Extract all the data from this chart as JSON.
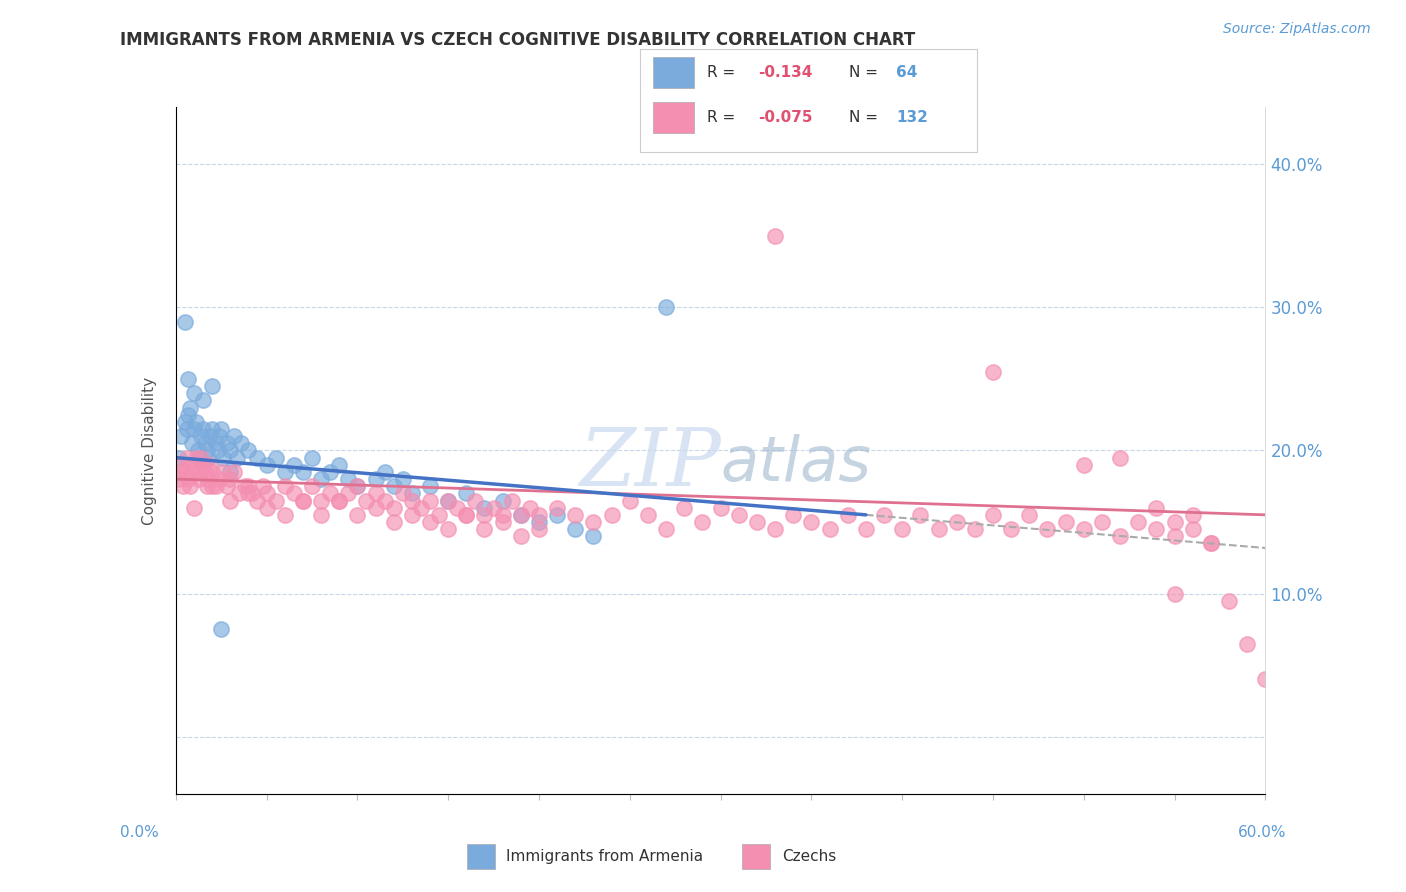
{
  "title": "IMMIGRANTS FROM ARMENIA VS CZECH COGNITIVE DISABILITY CORRELATION CHART",
  "source_text": "Source: ZipAtlas.com",
  "ylabel": "Cognitive Disability",
  "xlim": [
    0.0,
    0.6
  ],
  "ylim": [
    -0.04,
    0.44
  ],
  "ytick_vals": [
    0.0,
    0.1,
    0.2,
    0.3,
    0.4
  ],
  "ytick_labels": [
    "",
    "10.0%",
    "20.0%",
    "30.0%",
    "40.0%"
  ],
  "color_armenia": "#7aabdc",
  "color_czech": "#f48fb1",
  "color_armenia_line": "#4472c4",
  "color_czech_line": "#e07090",
  "watermark_color": "#c8d8ee",
  "legend_r1": "R = -0.134",
  "legend_n1": "N =  64",
  "legend_r2": "R = -0.075",
  "legend_n2": "N = 132",
  "armenia_x": [
    0.002,
    0.003,
    0.005,
    0.006,
    0.007,
    0.008,
    0.009,
    0.01,
    0.011,
    0.012,
    0.013,
    0.014,
    0.015,
    0.016,
    0.017,
    0.018,
    0.019,
    0.02,
    0.022,
    0.023,
    0.024,
    0.025,
    0.026,
    0.028,
    0.03,
    0.032,
    0.034,
    0.036,
    0.04,
    0.045,
    0.05,
    0.055,
    0.06,
    0.065,
    0.07,
    0.075,
    0.08,
    0.085,
    0.09,
    0.095,
    0.1,
    0.11,
    0.115,
    0.12,
    0.125,
    0.13,
    0.14,
    0.15,
    0.16,
    0.17,
    0.18,
    0.19,
    0.2,
    0.21,
    0.22,
    0.23,
    0.005,
    0.007,
    0.01,
    0.015,
    0.02,
    0.025,
    0.03,
    0.27
  ],
  "armenia_y": [
    0.195,
    0.21,
    0.22,
    0.215,
    0.225,
    0.23,
    0.205,
    0.215,
    0.22,
    0.2,
    0.195,
    0.21,
    0.215,
    0.205,
    0.2,
    0.195,
    0.21,
    0.215,
    0.205,
    0.2,
    0.21,
    0.215,
    0.195,
    0.205,
    0.2,
    0.21,
    0.195,
    0.205,
    0.2,
    0.195,
    0.19,
    0.195,
    0.185,
    0.19,
    0.185,
    0.195,
    0.18,
    0.185,
    0.19,
    0.18,
    0.175,
    0.18,
    0.185,
    0.175,
    0.18,
    0.17,
    0.175,
    0.165,
    0.17,
    0.16,
    0.165,
    0.155,
    0.15,
    0.155,
    0.145,
    0.14,
    0.29,
    0.25,
    0.24,
    0.235,
    0.245,
    0.075,
    0.185,
    0.3
  ],
  "czech_x": [
    0.001,
    0.002,
    0.003,
    0.004,
    0.005,
    0.006,
    0.007,
    0.008,
    0.009,
    0.01,
    0.011,
    0.012,
    0.013,
    0.014,
    0.015,
    0.016,
    0.017,
    0.018,
    0.019,
    0.02,
    0.022,
    0.024,
    0.026,
    0.028,
    0.03,
    0.032,
    0.035,
    0.038,
    0.04,
    0.042,
    0.045,
    0.048,
    0.05,
    0.055,
    0.06,
    0.065,
    0.07,
    0.075,
    0.08,
    0.085,
    0.09,
    0.095,
    0.1,
    0.105,
    0.11,
    0.115,
    0.12,
    0.125,
    0.13,
    0.135,
    0.14,
    0.145,
    0.15,
    0.155,
    0.16,
    0.165,
    0.17,
    0.175,
    0.18,
    0.185,
    0.19,
    0.195,
    0.2,
    0.21,
    0.22,
    0.23,
    0.24,
    0.25,
    0.26,
    0.27,
    0.28,
    0.29,
    0.3,
    0.31,
    0.32,
    0.33,
    0.34,
    0.35,
    0.36,
    0.37,
    0.38,
    0.39,
    0.4,
    0.41,
    0.42,
    0.43,
    0.44,
    0.45,
    0.46,
    0.47,
    0.48,
    0.49,
    0.5,
    0.51,
    0.52,
    0.53,
    0.54,
    0.55,
    0.56,
    0.57,
    0.01,
    0.02,
    0.03,
    0.04,
    0.05,
    0.06,
    0.07,
    0.08,
    0.09,
    0.1,
    0.11,
    0.12,
    0.13,
    0.14,
    0.15,
    0.16,
    0.17,
    0.18,
    0.19,
    0.2,
    0.33,
    0.45,
    0.5,
    0.52,
    0.54,
    0.55,
    0.56,
    0.57,
    0.58,
    0.59,
    0.6,
    0.55
  ],
  "czech_y": [
    0.185,
    0.18,
    0.19,
    0.175,
    0.185,
    0.195,
    0.18,
    0.175,
    0.185,
    0.19,
    0.195,
    0.185,
    0.18,
    0.195,
    0.19,
    0.185,
    0.175,
    0.18,
    0.19,
    0.185,
    0.175,
    0.18,
    0.185,
    0.175,
    0.18,
    0.185,
    0.17,
    0.175,
    0.175,
    0.17,
    0.165,
    0.175,
    0.17,
    0.165,
    0.175,
    0.17,
    0.165,
    0.175,
    0.165,
    0.17,
    0.165,
    0.17,
    0.175,
    0.165,
    0.17,
    0.165,
    0.16,
    0.17,
    0.165,
    0.16,
    0.165,
    0.155,
    0.165,
    0.16,
    0.155,
    0.165,
    0.155,
    0.16,
    0.155,
    0.165,
    0.155,
    0.16,
    0.155,
    0.16,
    0.155,
    0.15,
    0.155,
    0.165,
    0.155,
    0.145,
    0.16,
    0.15,
    0.16,
    0.155,
    0.15,
    0.145,
    0.155,
    0.15,
    0.145,
    0.155,
    0.145,
    0.155,
    0.145,
    0.155,
    0.145,
    0.15,
    0.145,
    0.155,
    0.145,
    0.155,
    0.145,
    0.15,
    0.145,
    0.15,
    0.14,
    0.15,
    0.145,
    0.14,
    0.145,
    0.135,
    0.16,
    0.175,
    0.165,
    0.17,
    0.16,
    0.155,
    0.165,
    0.155,
    0.165,
    0.155,
    0.16,
    0.15,
    0.155,
    0.15,
    0.145,
    0.155,
    0.145,
    0.15,
    0.14,
    0.145,
    0.35,
    0.255,
    0.19,
    0.195,
    0.16,
    0.15,
    0.155,
    0.135,
    0.095,
    0.065,
    0.04,
    0.1
  ]
}
